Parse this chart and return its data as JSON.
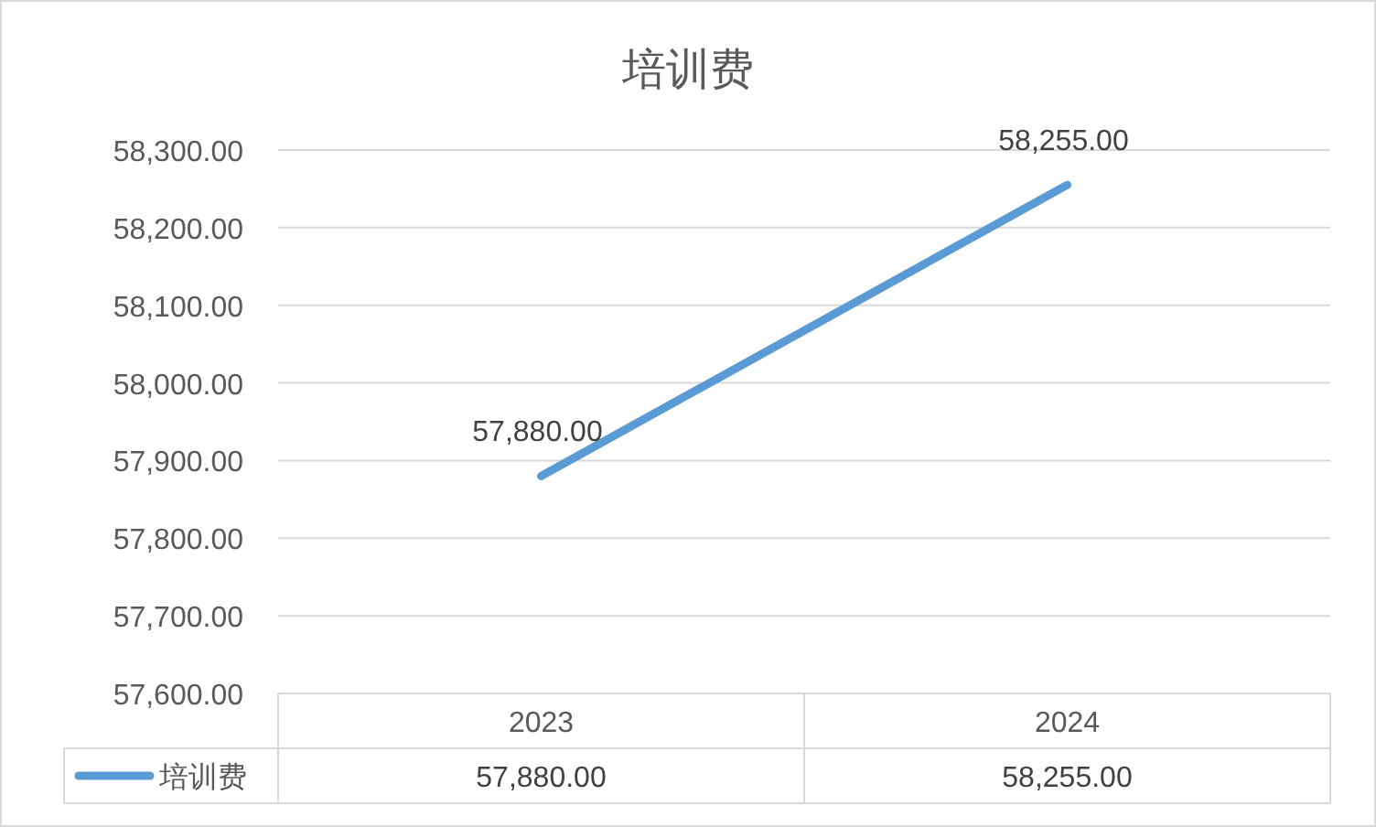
{
  "chart_data": {
    "type": "line",
    "title": "培训费",
    "categories": [
      "2023",
      "2024"
    ],
    "series": [
      {
        "name": "培训费",
        "color": "#5b9bd5",
        "values": [
          57880,
          58255
        ],
        "value_labels": [
          "57,880.00",
          "58,255.00"
        ]
      }
    ],
    "ylim": [
      57600,
      58300
    ],
    "yticks": [
      {
        "value": 57600,
        "label": "57,600.00"
      },
      {
        "value": 57700,
        "label": "57,700.00"
      },
      {
        "value": 57800,
        "label": "57,800.00"
      },
      {
        "value": 57900,
        "label": "57,900.00"
      },
      {
        "value": 58000,
        "label": "58,000.00"
      },
      {
        "value": 58100,
        "label": "58,100.00"
      },
      {
        "value": 58200,
        "label": "58,200.00"
      },
      {
        "value": 58300,
        "label": "58,300.00"
      }
    ],
    "grid": "y",
    "legend": "bottom"
  }
}
